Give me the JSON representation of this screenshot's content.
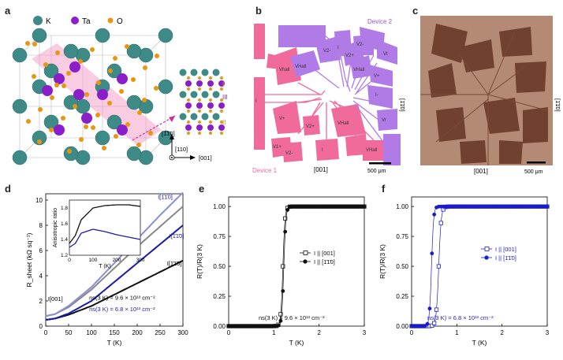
{
  "panels": {
    "a": "a",
    "b": "b",
    "c": "c",
    "d": "d",
    "e": "e",
    "f": "f"
  },
  "panel_a": {
    "legend": {
      "k": "K",
      "ta": "Ta",
      "o": "O"
    },
    "colors": {
      "k": "#3d8a86",
      "ta": "#8a1fc9",
      "o": "#e8960e",
      "plane": "#f39ac6"
    },
    "layer_labels": [
      "I",
      "III",
      "II"
    ],
    "axis_up": "[1̅1̄0]",
    "axis_right": "[001]",
    "axis_out": "[110]"
  },
  "panel_b": {
    "device1": "Device 1",
    "device2": "Device 2",
    "axis_bottom": "[001]",
    "axis_side": "[1̄1̄0]",
    "scale": "500 μm",
    "pads_pink": [
      "I+",
      "Vhall",
      "V+",
      "V2+",
      "V+",
      "V1+",
      "VHall",
      "Ir",
      "V2-",
      "I"
    ],
    "pads_purple": [
      "I",
      "V2-",
      "Vr",
      "VHall",
      "V2+",
      "V+",
      "I-",
      "VHall",
      "V+",
      "Vt"
    ],
    "colors": {
      "pink": "#f06a9c",
      "purple": "#b07be6"
    }
  },
  "panel_c": {
    "axis_bottom": "[001]",
    "axis_side": "[1̄1̄0]",
    "scale": "500 μm"
  },
  "chart_data": [
    {
      "panel": "d",
      "type": "line",
      "xlabel": "T (K)",
      "ylabel": "R_sheet (kΩ sq⁻¹)",
      "xlim": [
        0,
        300
      ],
      "ylim": [
        0,
        10.5
      ],
      "xticks": [
        0,
        50,
        100,
        150,
        200,
        250,
        300
      ],
      "yticks": [
        0,
        2,
        4,
        6,
        8,
        10
      ],
      "series": [
        {
          "name": "I[001]",
          "color": "#888888",
          "x": [
            0,
            20,
            50,
            100,
            150,
            200,
            250,
            300
          ],
          "y": [
            0.8,
            0.95,
            1.5,
            2.9,
            4.6,
            6.3,
            7.9,
            9.5
          ]
        },
        {
          "name": "I[1̄1̄0]",
          "color": "#8a8ed6",
          "x": [
            0,
            20,
            50,
            100,
            150,
            200,
            250,
            300
          ],
          "y": [
            0.8,
            0.95,
            1.6,
            3.1,
            5.0,
            6.9,
            8.8,
            10.6
          ]
        },
        {
          "name": "I[001]",
          "color": "#111111",
          "x": [
            0,
            20,
            50,
            100,
            150,
            200,
            250,
            300
          ],
          "y": [
            0.5,
            0.6,
            0.9,
            1.6,
            2.5,
            3.4,
            4.3,
            5.2
          ]
        },
        {
          "name": "I[1̄1̄0]",
          "color": "#1b1baa",
          "x": [
            0,
            20,
            50,
            100,
            150,
            200,
            250,
            300
          ],
          "y": [
            0.5,
            0.6,
            1.0,
            2.0,
            3.5,
            5.0,
            6.5,
            8.0
          ]
        }
      ],
      "labels": [
        "I[001]",
        "I[1̄1̄0]",
        "I[1̄1̄0]",
        "I[001]"
      ],
      "annotation1": "ns(3 K) = 9.6 × 10¹³ cm⁻²",
      "annotation2": "ns(3 K) = 6.8 × 10¹³ cm⁻²",
      "inset": {
        "ylabel": "Anisotropic ratio",
        "xlabel": "T (K)",
        "xlim": [
          0,
          300
        ],
        "ylim": [
          1.2,
          1.9
        ],
        "xticks": [
          0,
          100,
          200,
          300
        ],
        "yticks": [
          1.2,
          1.4,
          1.6,
          1.8
        ],
        "series": [
          {
            "color": "#111111",
            "x": [
              0,
              25,
              50,
              100,
              150,
              200,
              250,
              300
            ],
            "y": [
              1.35,
              1.45,
              1.65,
              1.8,
              1.83,
              1.84,
              1.84,
              1.82
            ]
          },
          {
            "color": "#1b1baa",
            "x": [
              0,
              25,
              50,
              100,
              150,
              200,
              250,
              300
            ],
            "y": [
              1.3,
              1.35,
              1.48,
              1.53,
              1.5,
              1.46,
              1.43,
              1.4
            ]
          }
        ]
      }
    },
    {
      "panel": "e",
      "type": "scatter",
      "xlabel": "T (K)",
      "ylabel": "R(T)/R(3 K)",
      "xlim": [
        0,
        3
      ],
      "ylim": [
        0,
        1.08
      ],
      "xticks": [
        0,
        1,
        2,
        3
      ],
      "yticks": [
        0,
        0.25,
        0.5,
        0.75,
        1.0
      ],
      "legend": [
        "I || [001]",
        "I || [1̄1̄0]"
      ],
      "annotation": "ns(3 K) = 9.6 × 10¹³ cm⁻²",
      "series": [
        {
          "name": "I || [001]",
          "marker": "open-square",
          "color": "#111111",
          "tc": 1.2,
          "w": 0.05
        },
        {
          "name": "I || [1̄1̄0]",
          "marker": "filled-circle",
          "color": "#111111",
          "tc": 1.22,
          "w": 0.05
        }
      ]
    },
    {
      "panel": "f",
      "type": "scatter",
      "xlabel": "T (K)",
      "ylabel": "R(T)/R(3 K)",
      "xlim": [
        0,
        3
      ],
      "ylim": [
        0,
        1.08
      ],
      "xticks": [
        0,
        1,
        2,
        3
      ],
      "yticks": [
        0,
        0.25,
        0.5,
        0.75,
        1.0
      ],
      "legend": [
        "I || [001]",
        "I || [1̄1̄0]"
      ],
      "annotation": "ns(3 K) = 6.8 × 10¹³ cm⁻²",
      "series": [
        {
          "name": "I || [001]",
          "marker": "open-square",
          "color": "#1b1bcc",
          "tc": 0.6,
          "w": 0.06
        },
        {
          "name": "I || [1̄1̄0]",
          "marker": "filled-circle",
          "color": "#1b1bcc",
          "tc": 0.44,
          "w": 0.05
        }
      ]
    }
  ]
}
